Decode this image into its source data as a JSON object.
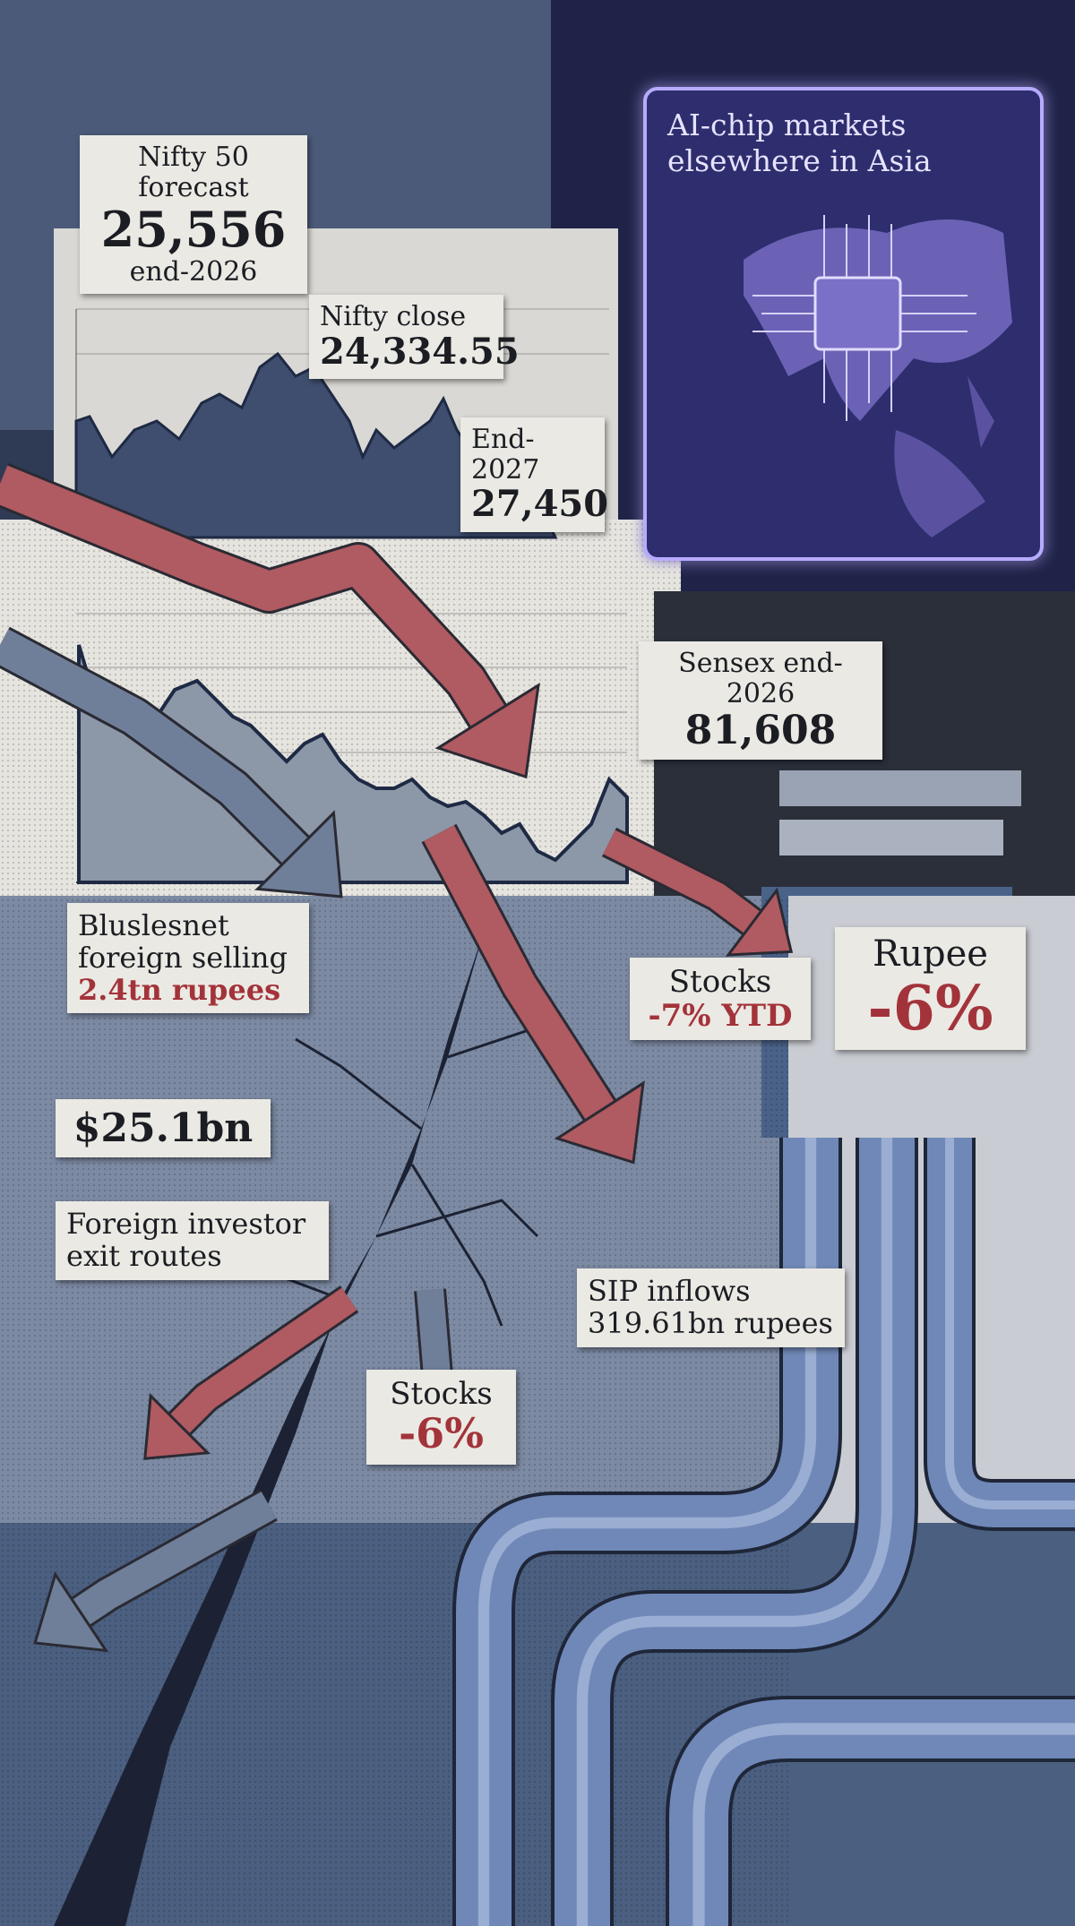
{
  "nifty_forecast": {
    "title": "Nifty 50 forecast",
    "value": "25,556",
    "note": "end-2026"
  },
  "nifty_close": {
    "title": "Nifty close",
    "value": "24,334.55"
  },
  "end_2027": {
    "title": "End-2027",
    "value": "27,450"
  },
  "ai_chip": {
    "title": "AI-chip markets elsewhere in Asia"
  },
  "sensex": {
    "title": "Sensex end-2026",
    "value": "81,608"
  },
  "foreign_selling": {
    "title": "Bluslesnet foreign selling",
    "value": "2.4tn rupees"
  },
  "stocks_ytd": {
    "title": "Stocks",
    "value": "-7% YTD"
  },
  "rupee": {
    "title": "Rupee",
    "value": "-6%"
  },
  "outflow": {
    "value": "$25.1bn"
  },
  "exit_routes": {
    "title": "Foreign investor exit routes"
  },
  "sip": {
    "title": "SIP inflows",
    "value": "319.61bn rupees"
  },
  "stocks": {
    "title": "Stocks",
    "value": "-6%"
  }
}
